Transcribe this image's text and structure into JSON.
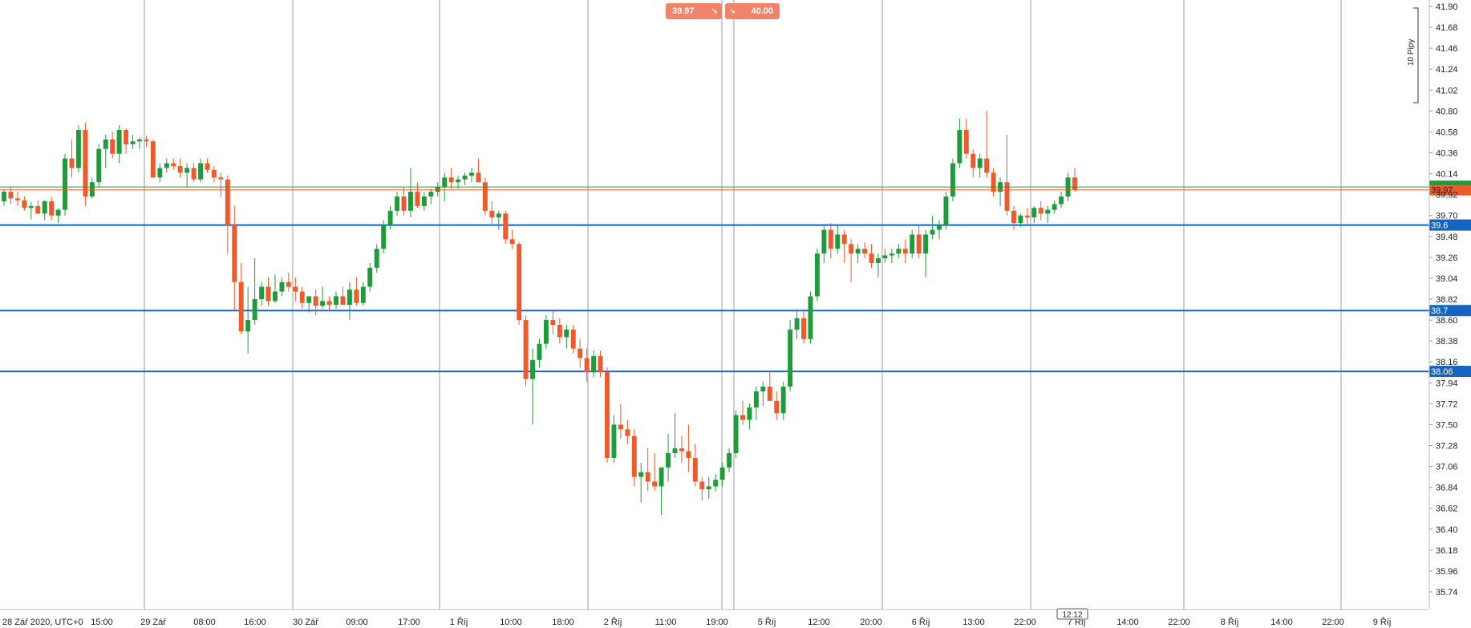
{
  "quotes": {
    "bid": "39.97",
    "ask": "40.00",
    "bid_icon": "arrow-down-right-icon",
    "ask_icon": "arrow-down-right-icon"
  },
  "scale_label": "10 Pipy",
  "time_cursor_label": "12:12",
  "colors": {
    "up": "#1e9c3a",
    "down": "#f05a2b",
    "level_line": "#1565c0",
    "price_line_bid": "#f05a2b",
    "price_line_ask": "#1e9c3a",
    "grid": "#9e9e9e",
    "quote_bg": "#f0836a"
  },
  "chart_data": {
    "type": "candlestick",
    "title": "",
    "xlabel": "",
    "ylabel": "",
    "ylim": [
      35.6,
      41.95
    ],
    "y_ticks": [
      "41.90",
      "41.68",
      "41.46",
      "41.24",
      "41.02",
      "40.80",
      "40.58",
      "40.36",
      "40.14",
      "39.92",
      "39.70",
      "39.48",
      "39.26",
      "39.04",
      "38.82",
      "38.60",
      "38.38",
      "38.16",
      "37.94",
      "37.72",
      "37.50",
      "37.28",
      "37.06",
      "36.84",
      "36.62",
      "36.40",
      "36.18",
      "35.96",
      "35.74"
    ],
    "x_ticks": [
      "28 Zář 2020, UTC+0",
      "15:00",
      "29 Zář",
      "08:00",
      "16:00",
      "30 Zář",
      "09:00",
      "17:00",
      "1 Říj",
      "10:00",
      "18:00",
      "2 Říj",
      "11:00",
      "19:00",
      "5 Říj",
      "12:00",
      "20:00",
      "6 Říj",
      "13:00",
      "22:00",
      "7 Říj",
      "14:00",
      "22:00",
      "8 Říj",
      "14:00",
      "22:00",
      "9 Říj"
    ],
    "grid_lines_at_ticks": [
      "29 Zář",
      "30 Zář",
      "1 Říj",
      "2 Říj",
      "19:00",
      "5 Říj",
      "20:00",
      "6 Říj",
      "22:00",
      "7 Říj",
      "8 Říj",
      "9 Říj"
    ],
    "horizontal_levels": [
      {
        "label": "39.6",
        "value": 39.6
      },
      {
        "label": "38.7",
        "value": 38.7
      },
      {
        "label": "38.06",
        "value": 38.06
      }
    ],
    "current_price_tags": [
      {
        "label": "39.97",
        "value": 39.97,
        "side": "bid"
      },
      {
        "label": "40.00",
        "value": 40.0,
        "side": "ask"
      }
    ],
    "candles": [
      [
        39.85,
        39.98,
        39.8,
        39.95
      ],
      [
        39.95,
        40.0,
        39.82,
        39.88
      ],
      [
        39.88,
        39.95,
        39.8,
        39.86
      ],
      [
        39.86,
        39.9,
        39.75,
        39.78
      ],
      [
        39.78,
        39.84,
        39.66,
        39.8
      ],
      [
        39.8,
        39.86,
        39.72,
        39.72
      ],
      [
        39.72,
        39.86,
        39.65,
        39.85
      ],
      [
        39.85,
        39.9,
        39.65,
        39.7
      ],
      [
        39.7,
        39.78,
        39.62,
        39.76
      ],
      [
        39.76,
        40.35,
        39.7,
        40.3
      ],
      [
        40.3,
        40.5,
        40.1,
        40.2
      ],
      [
        40.2,
        40.65,
        40.15,
        40.6
      ],
      [
        40.6,
        40.68,
        39.8,
        39.9
      ],
      [
        39.9,
        40.1,
        39.88,
        40.05
      ],
      [
        40.05,
        40.45,
        40.0,
        40.4
      ],
      [
        40.4,
        40.55,
        40.2,
        40.5
      ],
      [
        40.5,
        40.58,
        40.3,
        40.35
      ],
      [
        40.35,
        40.65,
        40.25,
        40.6
      ],
      [
        40.6,
        40.62,
        40.35,
        40.45
      ],
      [
        40.45,
        40.55,
        40.4,
        40.48
      ],
      [
        40.48,
        40.52,
        40.4,
        40.5
      ],
      [
        40.5,
        40.54,
        40.42,
        40.48
      ],
      [
        40.48,
        40.5,
        40.1,
        40.1
      ],
      [
        40.1,
        40.25,
        40.05,
        40.2
      ],
      [
        40.2,
        40.3,
        40.15,
        40.25
      ],
      [
        40.25,
        40.3,
        40.18,
        40.22
      ],
      [
        40.22,
        40.3,
        40.1,
        40.15
      ],
      [
        40.15,
        40.25,
        40.0,
        40.2
      ],
      [
        40.2,
        40.25,
        40.05,
        40.08
      ],
      [
        40.08,
        40.3,
        40.05,
        40.25
      ],
      [
        40.25,
        40.3,
        40.15,
        40.18
      ],
      [
        40.18,
        40.22,
        40.05,
        40.1
      ],
      [
        40.1,
        40.15,
        39.9,
        40.08
      ],
      [
        40.08,
        40.12,
        39.3,
        39.6
      ],
      [
        39.6,
        39.8,
        38.7,
        39.0
      ],
      [
        39.0,
        39.2,
        38.45,
        38.48
      ],
      [
        38.48,
        38.95,
        38.25,
        38.6
      ],
      [
        38.6,
        39.25,
        38.55,
        38.82
      ],
      [
        38.82,
        39.0,
        38.75,
        38.95
      ],
      [
        38.95,
        39.05,
        38.75,
        38.8
      ],
      [
        38.8,
        39.08,
        38.78,
        38.9
      ],
      [
        38.9,
        39.05,
        38.85,
        39.0
      ],
      [
        39.0,
        39.1,
        38.9,
        38.95
      ],
      [
        38.95,
        39.05,
        38.8,
        38.9
      ],
      [
        38.9,
        38.95,
        38.72,
        38.78
      ],
      [
        38.78,
        38.85,
        38.68,
        38.85
      ],
      [
        38.85,
        38.92,
        38.65,
        38.75
      ],
      [
        38.75,
        38.95,
        38.72,
        38.8
      ],
      [
        38.8,
        38.85,
        38.7,
        38.76
      ],
      [
        38.76,
        38.9,
        38.72,
        38.85
      ],
      [
        38.85,
        38.95,
        38.78,
        38.76
      ],
      [
        38.76,
        39.0,
        38.6,
        38.92
      ],
      [
        38.92,
        39.05,
        38.75,
        38.78
      ],
      [
        38.78,
        39.0,
        38.75,
        38.95
      ],
      [
        38.95,
        39.2,
        38.9,
        39.15
      ],
      [
        39.15,
        39.4,
        39.1,
        39.35
      ],
      [
        39.35,
        39.65,
        39.3,
        39.6
      ],
      [
        39.6,
        39.8,
        39.55,
        39.75
      ],
      [
        39.75,
        39.95,
        39.7,
        39.9
      ],
      [
        39.9,
        40.0,
        39.7,
        39.75
      ],
      [
        39.75,
        40.2,
        39.68,
        39.95
      ],
      [
        39.95,
        40.05,
        39.78,
        39.8
      ],
      [
        39.8,
        39.95,
        39.75,
        39.9
      ],
      [
        39.9,
        39.98,
        39.82,
        39.95
      ],
      [
        39.95,
        40.05,
        39.9,
        40.0
      ],
      [
        40.0,
        40.15,
        39.85,
        40.1
      ],
      [
        40.1,
        40.2,
        39.98,
        40.05
      ],
      [
        40.05,
        40.12,
        39.98,
        40.08
      ],
      [
        40.08,
        40.15,
        40.02,
        40.12
      ],
      [
        40.12,
        40.2,
        40.05,
        40.15
      ],
      [
        40.15,
        40.3,
        40.1,
        40.05
      ],
      [
        40.05,
        40.1,
        39.7,
        39.75
      ],
      [
        39.75,
        39.85,
        39.6,
        39.68
      ],
      [
        39.68,
        39.75,
        39.55,
        39.72
      ],
      [
        39.72,
        39.75,
        39.4,
        39.45
      ],
      [
        39.45,
        39.55,
        39.35,
        39.4
      ],
      [
        39.4,
        39.42,
        38.55,
        38.6
      ],
      [
        38.6,
        38.65,
        37.9,
        37.98
      ],
      [
        37.98,
        38.3,
        37.5,
        38.18
      ],
      [
        38.18,
        38.4,
        38.1,
        38.35
      ],
      [
        38.35,
        38.65,
        38.3,
        38.6
      ],
      [
        38.6,
        38.7,
        38.45,
        38.55
      ],
      [
        38.55,
        38.62,
        38.35,
        38.42
      ],
      [
        38.42,
        38.55,
        38.3,
        38.5
      ],
      [
        38.5,
        38.55,
        38.25,
        38.3
      ],
      [
        38.3,
        38.4,
        38.1,
        38.2
      ],
      [
        38.2,
        38.3,
        37.95,
        38.05
      ],
      [
        38.05,
        38.28,
        38.0,
        38.22
      ],
      [
        38.22,
        38.28,
        38.0,
        38.05
      ],
      [
        38.05,
        38.1,
        37.1,
        37.15
      ],
      [
        37.15,
        37.6,
        37.1,
        37.5
      ],
      [
        37.5,
        37.72,
        37.35,
        37.45
      ],
      [
        37.45,
        37.55,
        37.3,
        37.38
      ],
      [
        37.38,
        37.45,
        36.85,
        36.95
      ],
      [
        36.95,
        37.1,
        36.68,
        37.0
      ],
      [
        37.0,
        37.25,
        36.8,
        36.9
      ],
      [
        36.9,
        37.2,
        36.8,
        36.85
      ],
      [
        36.85,
        37.05,
        36.55,
        37.05
      ],
      [
        37.05,
        37.4,
        36.9,
        37.2
      ],
      [
        37.2,
        37.62,
        37.15,
        37.25
      ],
      [
        37.25,
        37.38,
        37.1,
        37.22
      ],
      [
        37.22,
        37.5,
        37.0,
        37.15
      ],
      [
        37.15,
        37.3,
        36.85,
        36.9
      ],
      [
        36.9,
        36.95,
        36.7,
        36.82
      ],
      [
        36.82,
        36.95,
        36.72,
        36.85
      ],
      [
        36.85,
        36.98,
        36.8,
        36.92
      ],
      [
        36.92,
        37.1,
        36.85,
        37.05
      ],
      [
        37.05,
        37.25,
        37.0,
        37.2
      ],
      [
        37.2,
        37.65,
        37.15,
        37.6
      ],
      [
        37.6,
        37.75,
        37.5,
        37.55
      ],
      [
        37.55,
        37.72,
        37.45,
        37.68
      ],
      [
        37.68,
        37.9,
        37.55,
        37.85
      ],
      [
        37.85,
        37.95,
        37.7,
        37.9
      ],
      [
        37.9,
        38.05,
        37.75,
        37.75
      ],
      [
        37.75,
        37.85,
        37.55,
        37.62
      ],
      [
        37.62,
        37.95,
        37.55,
        37.9
      ],
      [
        37.9,
        38.6,
        37.85,
        38.5
      ],
      [
        38.5,
        38.7,
        38.4,
        38.62
      ],
      [
        38.62,
        38.7,
        38.35,
        38.4
      ],
      [
        38.4,
        38.9,
        38.35,
        38.85
      ],
      [
        38.85,
        39.35,
        38.8,
        39.3
      ],
      [
        39.3,
        39.6,
        39.2,
        39.55
      ],
      [
        39.55,
        39.62,
        39.25,
        39.35
      ],
      [
        39.35,
        39.6,
        39.3,
        39.5
      ],
      [
        39.5,
        39.55,
        39.2,
        39.4
      ],
      [
        39.4,
        39.45,
        39.0,
        39.3
      ],
      [
        39.3,
        39.4,
        39.2,
        39.35
      ],
      [
        39.35,
        39.42,
        39.25,
        39.3
      ],
      [
        39.3,
        39.4,
        39.15,
        39.2
      ],
      [
        39.2,
        39.3,
        39.05,
        39.25
      ],
      [
        39.25,
        39.35,
        39.2,
        39.28
      ],
      [
        39.28,
        39.35,
        39.2,
        39.3
      ],
      [
        39.3,
        39.4,
        39.25,
        39.35
      ],
      [
        39.35,
        39.45,
        39.2,
        39.3
      ],
      [
        39.3,
        39.55,
        39.25,
        39.5
      ],
      [
        39.5,
        39.6,
        39.25,
        39.3
      ],
      [
        39.3,
        39.55,
        39.05,
        39.5
      ],
      [
        39.5,
        39.7,
        39.45,
        39.55
      ],
      [
        39.55,
        39.65,
        39.45,
        39.6
      ],
      [
        39.6,
        39.95,
        39.55,
        39.9
      ],
      [
        39.9,
        40.3,
        39.85,
        40.25
      ],
      [
        40.25,
        40.72,
        40.2,
        40.6
      ],
      [
        40.6,
        40.72,
        40.3,
        40.35
      ],
      [
        40.35,
        40.4,
        40.1,
        40.2
      ],
      [
        40.2,
        40.35,
        40.1,
        40.3
      ],
      [
        40.3,
        40.8,
        40.1,
        40.15
      ],
      [
        40.15,
        40.2,
        39.9,
        39.95
      ],
      [
        39.95,
        40.1,
        39.8,
        40.05
      ],
      [
        40.05,
        40.55,
        39.7,
        39.75
      ],
      [
        39.75,
        39.8,
        39.55,
        39.62
      ],
      [
        39.62,
        39.72,
        39.58,
        39.7
      ],
      [
        39.7,
        39.78,
        39.6,
        39.68
      ],
      [
        39.68,
        39.8,
        39.62,
        39.78
      ],
      [
        39.78,
        39.85,
        39.65,
        39.72
      ],
      [
        39.72,
        39.8,
        39.62,
        39.76
      ],
      [
        39.76,
        39.85,
        39.72,
        39.82
      ],
      [
        39.82,
        39.95,
        39.78,
        39.9
      ],
      [
        39.9,
        40.15,
        39.85,
        40.1
      ],
      [
        40.1,
        40.2,
        39.95,
        39.97
      ]
    ]
  }
}
